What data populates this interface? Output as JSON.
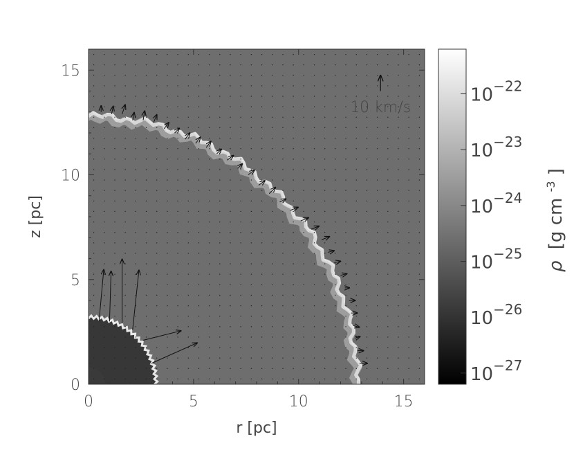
{
  "chart_data": {
    "type": "heatmap",
    "xlabel": "r [pc]",
    "ylabel": "z [pc]",
    "xlim": [
      0,
      16
    ],
    "ylim": [
      0,
      16
    ],
    "xticks": [
      {
        "v": 0,
        "label": "0"
      },
      {
        "v": 5,
        "label": "5"
      },
      {
        "v": 10,
        "label": "10"
      },
      {
        "v": 15,
        "label": "15"
      }
    ],
    "yticks": [
      {
        "v": 0,
        "label": "0"
      },
      {
        "v": 5,
        "label": "5"
      },
      {
        "v": 10,
        "label": "10"
      },
      {
        "v": 15,
        "label": "15"
      }
    ],
    "velocity_key": {
      "label": "10 km/s",
      "speed_kms": 10
    },
    "grid_spacing_pc": 0.5,
    "colorbar": {
      "label_symbol": "ρ",
      "label_unit_pre": "[g cm",
      "label_unit_exp": "-3",
      "label_unit_post": "]",
      "scale": "log",
      "range": [
        -27.2,
        -21.2
      ],
      "ticks": [
        {
          "exp": -22,
          "base": "10",
          "sup": "−22"
        },
        {
          "exp": -23,
          "base": "10",
          "sup": "−23"
        },
        {
          "exp": -24,
          "base": "10",
          "sup": "−24"
        },
        {
          "exp": -25,
          "base": "10",
          "sup": "−25"
        },
        {
          "exp": -26,
          "base": "10",
          "sup": "−26"
        },
        {
          "exp": -27,
          "base": "10",
          "sup": "−27"
        }
      ]
    },
    "regions": {
      "ambient_density_exp": -24.6,
      "inner_bubble_density_exp": -25.9,
      "inner_bubble_radius_pc": 3.2,
      "shell_radius_pc": 12.8
    },
    "velocity_vectors": [
      {
        "r": 0.5,
        "z": 3.0,
        "vr": 0.3,
        "vz": 3.3
      },
      {
        "r": 1.0,
        "z": 3.0,
        "vr": 0.1,
        "vz": 3.2
      },
      {
        "r": 1.6,
        "z": 2.9,
        "vr": 0.0,
        "vz": 4.1
      },
      {
        "r": 2.1,
        "z": 2.6,
        "vr": 0.4,
        "vz": 3.8
      },
      {
        "r": 2.6,
        "z": 2.1,
        "vr": 2.4,
        "vz": 0.6
      },
      {
        "r": 3.0,
        "z": 1.0,
        "vr": 2.9,
        "vz": 1.3
      },
      {
        "r": 0.6,
        "z": 13.0,
        "vr": 0.0,
        "vz": 0.4
      },
      {
        "r": 1.1,
        "z": 12.9,
        "vr": 0.1,
        "vz": 0.5
      },
      {
        "r": 1.6,
        "z": 12.9,
        "vr": 0.2,
        "vz": 0.6
      },
      {
        "r": 2.1,
        "z": 12.6,
        "vr": 0.1,
        "vz": 0.5
      },
      {
        "r": 2.6,
        "z": 12.6,
        "vr": 0.1,
        "vz": 0.6
      },
      {
        "r": 3.1,
        "z": 12.5,
        "vr": 0.2,
        "vz": 0.5
      },
      {
        "r": 3.6,
        "z": 12.2,
        "vr": 0.3,
        "vz": 0.4
      },
      {
        "r": 4.1,
        "z": 12.0,
        "vr": 0.3,
        "vz": 0.3
      },
      {
        "r": 4.6,
        "z": 11.7,
        "vr": 0.3,
        "vz": 0.4
      },
      {
        "r": 5.1,
        "z": 11.5,
        "vr": 0.3,
        "vz": 0.4
      },
      {
        "r": 5.6,
        "z": 11.3,
        "vr": 0.3,
        "vz": 0.4
      },
      {
        "r": 6.1,
        "z": 11.0,
        "vr": 0.3,
        "vz": 0.3
      },
      {
        "r": 6.6,
        "z": 10.7,
        "vr": 0.4,
        "vz": 0.3
      },
      {
        "r": 7.1,
        "z": 10.3,
        "vr": 0.3,
        "vz": 0.3
      },
      {
        "r": 7.6,
        "z": 10.0,
        "vr": 0.4,
        "vz": 0.3
      },
      {
        "r": 8.1,
        "z": 9.5,
        "vr": 0.4,
        "vz": 0.3
      },
      {
        "r": 8.6,
        "z": 9.1,
        "vr": 0.4,
        "vz": 0.4
      },
      {
        "r": 9.1,
        "z": 8.7,
        "vr": 0.4,
        "vz": 0.2
      },
      {
        "r": 9.6,
        "z": 8.3,
        "vr": 0.5,
        "vz": 0.2
      },
      {
        "r": 10.1,
        "z": 7.8,
        "vr": 0.5,
        "vz": 0.2
      },
      {
        "r": 10.6,
        "z": 7.4,
        "vr": 0.5,
        "vz": 0.2
      },
      {
        "r": 11.1,
        "z": 6.9,
        "vr": 0.5,
        "vz": 0.2
      },
      {
        "r": 11.4,
        "z": 6.3,
        "vr": 0.4,
        "vz": 0.1
      },
      {
        "r": 11.7,
        "z": 5.8,
        "vr": 0.4,
        "vz": 0.1
      },
      {
        "r": 12.0,
        "z": 5.2,
        "vr": 0.4,
        "vz": 0.1
      },
      {
        "r": 12.2,
        "z": 4.6,
        "vr": 0.3,
        "vz": 0.0
      },
      {
        "r": 12.4,
        "z": 4.0,
        "vr": 0.4,
        "vz": 0.0
      },
      {
        "r": 12.5,
        "z": 3.4,
        "vr": 0.4,
        "vz": 0.0
      },
      {
        "r": 12.6,
        "z": 2.8,
        "vr": 0.4,
        "vz": -0.1
      },
      {
        "r": 12.7,
        "z": 2.2,
        "vr": 0.3,
        "vz": 0.1
      },
      {
        "r": 12.8,
        "z": 1.6,
        "vr": 0.4,
        "vz": 0.0
      },
      {
        "r": 12.9,
        "z": 1.0,
        "vr": 0.5,
        "vz": 0.0
      }
    ]
  }
}
